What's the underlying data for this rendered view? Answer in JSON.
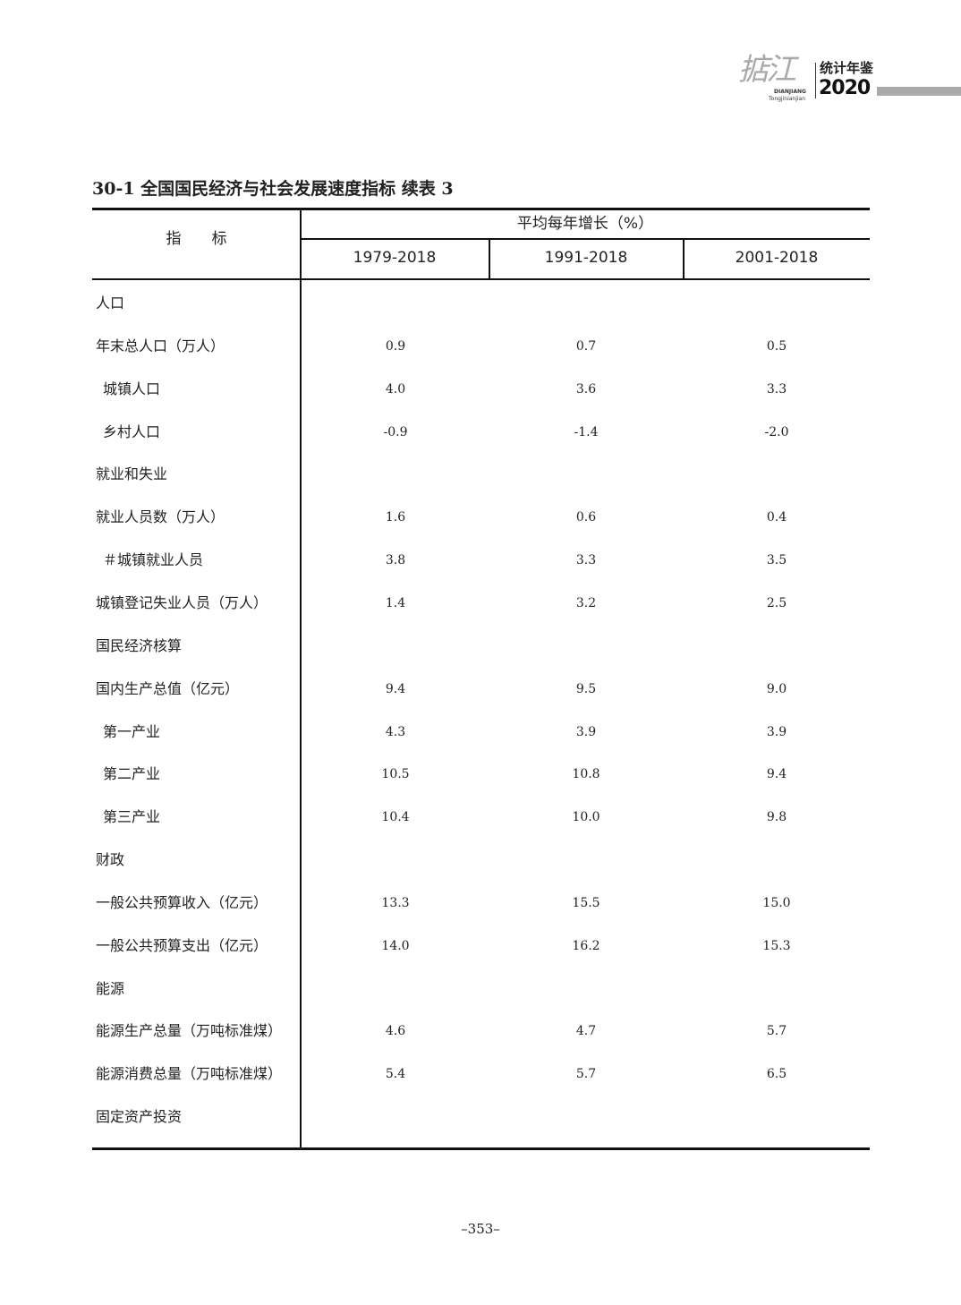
{
  "header": {
    "logo_text": "掂江",
    "logo_pinyin_1": "DIANJIANG",
    "logo_pinyin_2": "Tongjinianjian",
    "logo_name": "统计年鉴",
    "logo_year": "2020"
  },
  "title": "30-1 全国国民经济与社会发展速度指标 续表 3",
  "table": {
    "col_indicator": "指　　标",
    "group_header": "平均每年增长（%）",
    "periods": [
      "1979-2018",
      "1991-2018",
      "2001-2018"
    ],
    "rows": [
      {
        "label": "人口",
        "indent": false,
        "values": [
          "",
          "",
          ""
        ]
      },
      {
        "label": "年末总人口（万人）",
        "indent": false,
        "values": [
          "0.9",
          "0.7",
          "0.5"
        ]
      },
      {
        "label": "城镇人口",
        "indent": true,
        "values": [
          "4.0",
          "3.6",
          "3.3"
        ]
      },
      {
        "label": "乡村人口",
        "indent": true,
        "values": [
          "-0.9",
          "-1.4",
          "-2.0"
        ]
      },
      {
        "label": "就业和失业",
        "indent": false,
        "values": [
          "",
          "",
          ""
        ]
      },
      {
        "label": "就业人员数（万人）",
        "indent": false,
        "values": [
          "1.6",
          "0.6",
          "0.4"
        ]
      },
      {
        "label": "＃城镇就业人员",
        "indent": true,
        "values": [
          "3.8",
          "3.3",
          "3.5"
        ]
      },
      {
        "label": "城镇登记失业人员（万人）",
        "indent": false,
        "values": [
          "1.4",
          "3.2",
          "2.5"
        ]
      },
      {
        "label": "国民经济核算",
        "indent": false,
        "values": [
          "",
          "",
          ""
        ]
      },
      {
        "label": "国内生产总值（亿元）",
        "indent": false,
        "values": [
          "9.4",
          "9.5",
          "9.0"
        ]
      },
      {
        "label": "第一产业",
        "indent": true,
        "values": [
          "4.3",
          "3.9",
          "3.9"
        ]
      },
      {
        "label": "第二产业",
        "indent": true,
        "values": [
          "10.5",
          "10.8",
          "9.4"
        ]
      },
      {
        "label": "第三产业",
        "indent": true,
        "values": [
          "10.4",
          "10.0",
          "9.8"
        ]
      },
      {
        "label": "财政",
        "indent": false,
        "values": [
          "",
          "",
          ""
        ]
      },
      {
        "label": "一般公共预算收入（亿元）",
        "indent": false,
        "values": [
          "13.3",
          "15.5",
          "15.0"
        ]
      },
      {
        "label": "一般公共预算支出（亿元）",
        "indent": false,
        "values": [
          "14.0",
          "16.2",
          "15.3"
        ]
      },
      {
        "label": "能源",
        "indent": false,
        "values": [
          "",
          "",
          ""
        ]
      },
      {
        "label": "能源生产总量（万吨标准煤）",
        "indent": false,
        "values": [
          "4.6",
          "4.7",
          "5.7"
        ]
      },
      {
        "label": "能源消费总量（万吨标准煤）",
        "indent": false,
        "values": [
          "5.4",
          "5.7",
          "6.5"
        ]
      },
      {
        "label": "固定资产投资",
        "indent": false,
        "values": [
          "",
          "",
          ""
        ]
      }
    ]
  },
  "page_number": "–353–"
}
